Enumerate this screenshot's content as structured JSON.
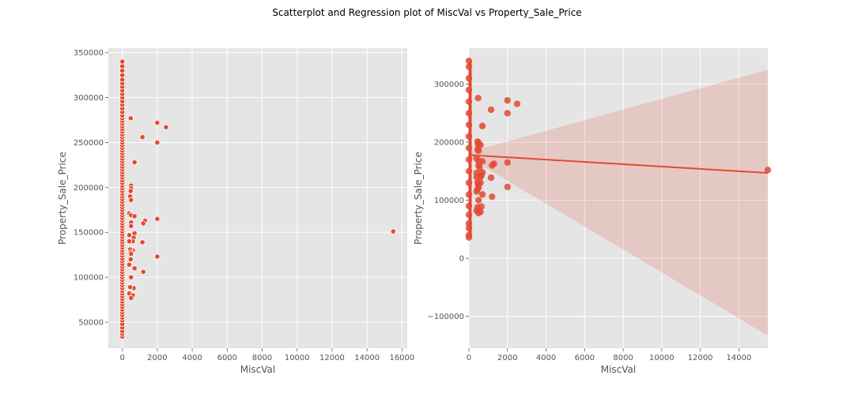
{
  "figure": {
    "suptitle": "Scatterplot and Regression plot of MiscVal vs Property_Sale_Price"
  },
  "colors": {
    "panel_bg": "#e5e5e5",
    "grid": "#ffffff",
    "points": "#e24a33",
    "point_edge": "#ffffff",
    "tick_text": "#555555",
    "label_text": "#555555",
    "ci_band": "#e24a33"
  },
  "chart_data": [
    {
      "type": "scatter",
      "title": "",
      "xlabel": "MiscVal",
      "ylabel": "Property_Sale_Price",
      "xlim": [
        -800,
        16300
      ],
      "ylim": [
        21000,
        355000
      ],
      "xticks": [
        0,
        2000,
        4000,
        6000,
        8000,
        10000,
        12000,
        14000,
        16000
      ],
      "xtick_labels": [
        "0",
        "2000",
        "4000",
        "6000",
        "8000",
        "10000",
        "12000",
        "14000",
        "16000"
      ],
      "yticks": [
        50000,
        100000,
        150000,
        200000,
        250000,
        300000,
        350000
      ],
      "ytick_labels": [
        "50000",
        "100000",
        "150000",
        "200000",
        "250000",
        "300000",
        "350000"
      ],
      "grid": true,
      "points": [
        [
          0,
          34000
        ],
        [
          0,
          37000
        ],
        [
          0,
          40000
        ],
        [
          0,
          44000
        ],
        [
          0,
          48000
        ],
        [
          0,
          52000
        ],
        [
          0,
          55000
        ],
        [
          0,
          58000
        ],
        [
          0,
          61000
        ],
        [
          0,
          64000
        ],
        [
          0,
          67000
        ],
        [
          0,
          70000
        ],
        [
          0,
          73000
        ],
        [
          0,
          76000
        ],
        [
          0,
          79000
        ],
        [
          0,
          82000
        ],
        [
          0,
          85000
        ],
        [
          0,
          88000
        ],
        [
          0,
          91000
        ],
        [
          0,
          94000
        ],
        [
          0,
          97000
        ],
        [
          0,
          100000
        ],
        [
          0,
          103000
        ],
        [
          0,
          106000
        ],
        [
          0,
          109000
        ],
        [
          0,
          112000
        ],
        [
          0,
          115000
        ],
        [
          0,
          118000
        ],
        [
          0,
          121000
        ],
        [
          0,
          124000
        ],
        [
          0,
          127000
        ],
        [
          0,
          130000
        ],
        [
          0,
          133000
        ],
        [
          0,
          136000
        ],
        [
          0,
          139000
        ],
        [
          0,
          142000
        ],
        [
          0,
          145000
        ],
        [
          0,
          148000
        ],
        [
          0,
          151000
        ],
        [
          0,
          154000
        ],
        [
          0,
          157000
        ],
        [
          0,
          160000
        ],
        [
          0,
          163000
        ],
        [
          0,
          166000
        ],
        [
          0,
          169000
        ],
        [
          0,
          172000
        ],
        [
          0,
          175000
        ],
        [
          0,
          178000
        ],
        [
          0,
          181000
        ],
        [
          0,
          184000
        ],
        [
          0,
          187000
        ],
        [
          0,
          190000
        ],
        [
          0,
          193000
        ],
        [
          0,
          196000
        ],
        [
          0,
          199000
        ],
        [
          0,
          202000
        ],
        [
          0,
          205000
        ],
        [
          0,
          208000
        ],
        [
          0,
          211000
        ],
        [
          0,
          214000
        ],
        [
          0,
          217000
        ],
        [
          0,
          220000
        ],
        [
          0,
          223000
        ],
        [
          0,
          226000
        ],
        [
          0,
          229000
        ],
        [
          0,
          232000
        ],
        [
          0,
          235000
        ],
        [
          0,
          238000
        ],
        [
          0,
          241000
        ],
        [
          0,
          244000
        ],
        [
          0,
          247000
        ],
        [
          0,
          250000
        ],
        [
          0,
          253000
        ],
        [
          0,
          256000
        ],
        [
          0,
          259000
        ],
        [
          0,
          262000
        ],
        [
          0,
          265000
        ],
        [
          0,
          268000
        ],
        [
          0,
          271000
        ],
        [
          0,
          274000
        ],
        [
          0,
          277000
        ],
        [
          0,
          280000
        ],
        [
          0,
          284000
        ],
        [
          0,
          288000
        ],
        [
          0,
          292000
        ],
        [
          0,
          296000
        ],
        [
          0,
          300000
        ],
        [
          0,
          304000
        ],
        [
          0,
          308000
        ],
        [
          0,
          312000
        ],
        [
          0,
          316000
        ],
        [
          0,
          320000
        ],
        [
          0,
          325000
        ],
        [
          0,
          330000
        ],
        [
          0,
          335000
        ],
        [
          0,
          340000
        ],
        [
          480,
          277000
        ],
        [
          500,
          202000
        ],
        [
          500,
          199000
        ],
        [
          480,
          196000
        ],
        [
          450,
          190000
        ],
        [
          500,
          186000
        ],
        [
          400,
          171000
        ],
        [
          500,
          169000
        ],
        [
          700,
          168000
        ],
        [
          500,
          161000
        ],
        [
          500,
          157000
        ],
        [
          400,
          147000
        ],
        [
          700,
          149000
        ],
        [
          650,
          144000
        ],
        [
          600,
          140000
        ],
        [
          400,
          140000
        ],
        [
          600,
          130000
        ],
        [
          450,
          131000
        ],
        [
          480,
          128000
        ],
        [
          500,
          126000
        ],
        [
          480,
          120000
        ],
        [
          400,
          114000
        ],
        [
          500,
          100000
        ],
        [
          700,
          110000
        ],
        [
          650,
          88000
        ],
        [
          450,
          89000
        ],
        [
          400,
          82000
        ],
        [
          600,
          80000
        ],
        [
          500,
          77000
        ],
        [
          700,
          228000
        ],
        [
          1150,
          256000
        ],
        [
          2000,
          272000
        ],
        [
          2500,
          267000
        ],
        [
          2000,
          250000
        ],
        [
          1300,
          163000
        ],
        [
          1200,
          160000
        ],
        [
          2000,
          165000
        ],
        [
          1150,
          139000
        ],
        [
          1200,
          106000
        ],
        [
          2000,
          123000
        ],
        [
          15500,
          151000
        ]
      ]
    },
    {
      "type": "scatter",
      "title": "",
      "xlabel": "MiscVal",
      "ylabel": "Property_Sale_Price",
      "xlim": [
        0,
        15500
      ],
      "ylim": [
        -155000,
        362000
      ],
      "xticks": [
        0,
        2000,
        4000,
        6000,
        8000,
        10000,
        12000,
        14000
      ],
      "xtick_labels": [
        "0",
        "2000",
        "4000",
        "6000",
        "8000",
        "10000",
        "12000",
        "14000"
      ],
      "yticks": [
        -100000,
        0,
        100000,
        200000,
        300000
      ],
      "ytick_labels": [
        "−100000",
        "0",
        "100000",
        "200000",
        "300000"
      ],
      "grid": true,
      "points": [
        [
          0,
          36000
        ],
        [
          0,
          40000
        ],
        [
          0,
          52000
        ],
        [
          0,
          60000
        ],
        [
          0,
          75000
        ],
        [
          0,
          90000
        ],
        [
          0,
          110000
        ],
        [
          0,
          130000
        ],
        [
          0,
          150000
        ],
        [
          0,
          170000
        ],
        [
          0,
          190000
        ],
        [
          0,
          210000
        ],
        [
          0,
          230000
        ],
        [
          0,
          250000
        ],
        [
          0,
          270000
        ],
        [
          0,
          290000
        ],
        [
          0,
          310000
        ],
        [
          0,
          330000
        ],
        [
          0,
          340000
        ],
        [
          480,
          276000
        ],
        [
          450,
          201000
        ],
        [
          500,
          199000
        ],
        [
          480,
          196000
        ],
        [
          600,
          195000
        ],
        [
          450,
          188000
        ],
        [
          500,
          185000
        ],
        [
          400,
          172000
        ],
        [
          500,
          168000
        ],
        [
          700,
          167000
        ],
        [
          500,
          160000
        ],
        [
          550,
          156000
        ],
        [
          400,
          147000
        ],
        [
          700,
          148000
        ],
        [
          650,
          143000
        ],
        [
          600,
          140000
        ],
        [
          400,
          140000
        ],
        [
          600,
          130000
        ],
        [
          450,
          131000
        ],
        [
          480,
          127000
        ],
        [
          500,
          122000
        ],
        [
          450,
          119000
        ],
        [
          400,
          115000
        ],
        [
          500,
          100000
        ],
        [
          700,
          110000
        ],
        [
          650,
          89000
        ],
        [
          450,
          88000
        ],
        [
          400,
          82000
        ],
        [
          600,
          80000
        ],
        [
          500,
          78000
        ],
        [
          700,
          228000
        ],
        [
          1150,
          256000
        ],
        [
          2000,
          272000
        ],
        [
          2500,
          266000
        ],
        [
          2000,
          250000
        ],
        [
          1300,
          163000
        ],
        [
          1200,
          160000
        ],
        [
          2000,
          165000
        ],
        [
          1150,
          139000
        ],
        [
          1200,
          106000
        ],
        [
          2000,
          123000
        ],
        [
          15500,
          152000
        ]
      ],
      "regression": {
        "x": [
          0,
          15500
        ],
        "y": [
          178000,
          147000
        ]
      },
      "confidence_band": {
        "x": [
          0,
          15500
        ],
        "lower": [
          173000,
          -133000
        ],
        "upper": [
          183000,
          325000
        ]
      }
    }
  ]
}
